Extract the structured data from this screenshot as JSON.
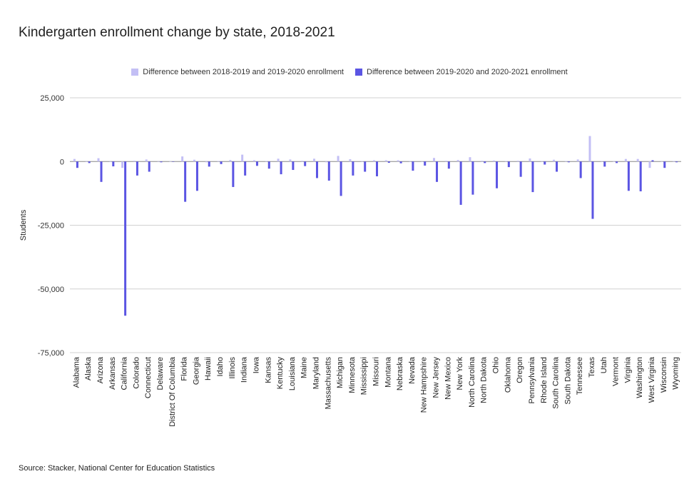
{
  "chart_data": {
    "type": "bar",
    "title": "Kindergarten enrollment change by state, 2018-2021",
    "ylabel": "Students",
    "xlabel": "",
    "ylim": [
      -75000,
      25000
    ],
    "yticks": [
      25000,
      0,
      -25000,
      -50000,
      -75000
    ],
    "ytick_labels": [
      "25,000",
      "0",
      "-25,000",
      "-50,000",
      "-75,000"
    ],
    "grid": true,
    "legend_position": "top",
    "categories": [
      "Alabama",
      "Alaska",
      "Arizona",
      "Arkansas",
      "California",
      "Colorado",
      "Connecticut",
      "Delaware",
      "District Of Columbia",
      "Florida",
      "Georgia",
      "Hawaii",
      "Idaho",
      "Illinois",
      "Indiana",
      "Iowa",
      "Kansas",
      "Kentucky",
      "Louisiana",
      "Maine",
      "Maryland",
      "Massachusetts",
      "Michigan",
      "Minnesota",
      "Mississippi",
      "Missouri",
      "Montana",
      "Nebraska",
      "Nevada",
      "New Hampshire",
      "New Jersey",
      "New Mexico",
      "New York",
      "North Carolina",
      "North Dakota",
      "Ohio",
      "Oklahoma",
      "Oregon",
      "Pennsylvania",
      "Rhode Island",
      "South Carolina",
      "South Dakota",
      "Tennessee",
      "Texas",
      "Utah",
      "Vermont",
      "Virginia",
      "Washington",
      "West Virginia",
      "Wisconsin",
      "Wyoming"
    ],
    "series": [
      {
        "name": "Difference between 2018-2019 and 2019-2020 enrollment",
        "color": "#c3bff5",
        "values": [
          1000,
          -200,
          1300,
          -200,
          -2500,
          300,
          800,
          -100,
          100,
          2000,
          700,
          -300,
          200,
          600,
          2700,
          500,
          200,
          1100,
          800,
          300,
          1100,
          -300,
          2200,
          900,
          200,
          500,
          500,
          500,
          200,
          -100,
          1400,
          300,
          600,
          1700,
          300,
          400,
          200,
          300,
          1200,
          200,
          700,
          200,
          800,
          10000,
          200,
          100,
          1000,
          1000,
          -2500,
          100,
          200
        ]
      },
      {
        "name": "Difference between 2019-2020 and 2020-2021 enrollment",
        "color": "#5b55e3",
        "values": [
          -2500,
          -600,
          -8000,
          -1900,
          -60500,
          -5500,
          -4000,
          -300,
          -100,
          -15800,
          -11500,
          -2000,
          -1000,
          -10000,
          -5500,
          -1700,
          -2800,
          -5000,
          -3300,
          -1800,
          -6500,
          -7500,
          -13500,
          -5500,
          -4000,
          -5800,
          -500,
          -700,
          -3600,
          -1600,
          -8000,
          -2800,
          -17000,
          -13000,
          -600,
          -10500,
          -2200,
          -6000,
          -12000,
          -1200,
          -4000,
          -300,
          -6500,
          -22500,
          -2000,
          -600,
          -11500,
          -11700,
          500,
          -2500,
          -300
        ]
      }
    ]
  },
  "source": "Source: Stacker, National Center for Education Statistics"
}
